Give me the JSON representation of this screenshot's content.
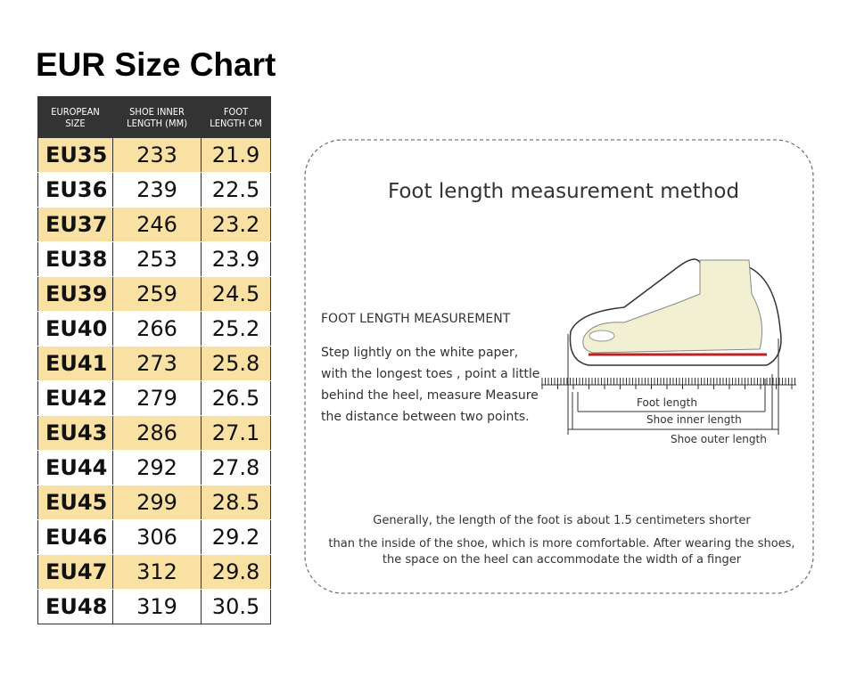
{
  "title": "EUR Size Chart",
  "table": {
    "header": [
      "EUROPEAN SIZE",
      "SHOE INNER LENGTH (MM)",
      "FOOT LENGTH CM"
    ],
    "rows": [
      [
        "EU35",
        233,
        21.9
      ],
      [
        "EU36",
        239,
        22.5
      ],
      [
        "EU37",
        246,
        23.2
      ],
      [
        "EU38",
        253,
        23.9
      ],
      [
        "EU39",
        259,
        24.5
      ],
      [
        "EU40",
        266,
        25.2
      ],
      [
        "EU41",
        273,
        25.8
      ],
      [
        "EU42",
        279,
        26.5
      ],
      [
        "EU43",
        286,
        27.1
      ],
      [
        "EU44",
        292,
        27.8
      ],
      [
        "EU45",
        299,
        28.5
      ],
      [
        "EU46",
        306,
        29.2
      ],
      [
        "EU47",
        312,
        29.8
      ],
      [
        "EU48",
        319,
        30.5
      ]
    ]
  },
  "method": {
    "title": "Foot length measurement method",
    "subtitle": "FOOT LENGTH MEASUREMENT",
    "steps": [
      "Step lightly on the white paper,",
      "with the longest toes , point a little",
      "behind the heel, measure Measure",
      "the distance between two points."
    ],
    "labels": [
      "Foot length",
      "Shoe inner length",
      "Shoe outer length"
    ],
    "notes": [
      "Generally, the length of the foot is about 1.5 centimeters shorter",
      "than the inside of the shoe, which is more comfortable. After wearing the shoes,",
      "the space on the heel can accommodate the width of a finger"
    ]
  }
}
